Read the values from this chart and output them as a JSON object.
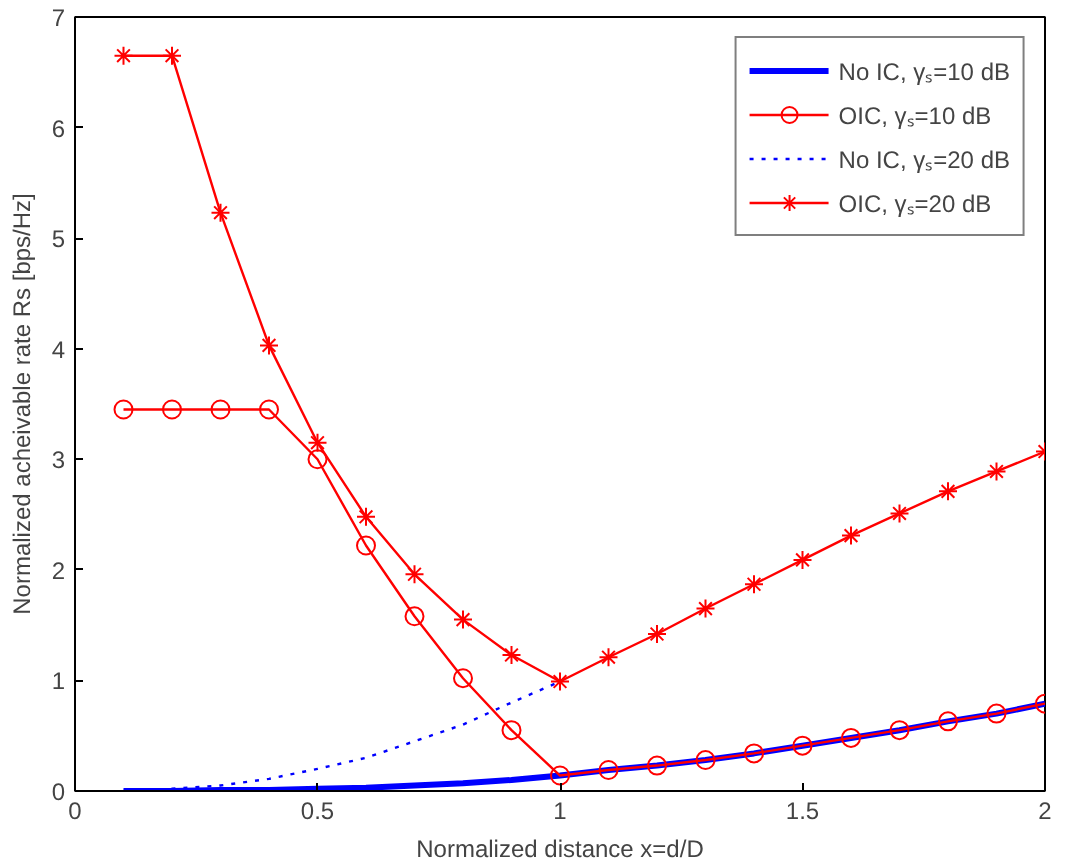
{
  "chart_data": {
    "type": "line",
    "xlabel": "Normalized distance x=d/D",
    "ylabel": "Normalized acheivable rate Rs [bps/Hz]",
    "xlim": [
      0,
      2
    ],
    "ylim": [
      0,
      7
    ],
    "xticks": [
      0,
      0.5,
      1,
      1.5,
      2
    ],
    "yticks": [
      0,
      1,
      2,
      3,
      4,
      5,
      6,
      7
    ],
    "grid": false,
    "legend": "top right",
    "x": [
      0.1,
      0.2,
      0.3,
      0.4,
      0.5,
      0.6,
      0.7,
      0.8,
      0.9,
      1.0,
      1.1,
      1.2,
      1.3,
      1.4,
      1.5,
      1.6,
      1.7,
      1.8,
      1.9,
      2.0
    ],
    "series": [
      {
        "name": "No IC, γₛ=10 dB",
        "color": "#0000ff",
        "marker": "none",
        "line_style": "solid",
        "values": [
          0.0,
          0.0,
          0.01,
          0.01,
          0.02,
          0.03,
          0.05,
          0.07,
          0.1,
          0.14,
          0.19,
          0.23,
          0.28,
          0.34,
          0.41,
          0.48,
          0.55,
          0.63,
          0.7,
          0.79
        ]
      },
      {
        "name": "OIC, γₛ=10 dB",
        "color": "#ff0000",
        "marker": "circle",
        "line_style": "solid",
        "values": [
          3.45,
          3.45,
          3.45,
          3.45,
          3.0,
          2.22,
          1.58,
          1.02,
          0.55,
          0.14,
          0.19,
          0.23,
          0.28,
          0.34,
          0.41,
          0.48,
          0.55,
          0.63,
          0.7,
          0.79
        ]
      },
      {
        "name": "No IC, γₛ=20 dB",
        "color": "#0000ff",
        "marker": "none",
        "line_style": "dotted",
        "values": [
          0.0,
          0.02,
          0.05,
          0.11,
          0.2,
          0.3,
          0.45,
          0.6,
          0.8,
          0.99,
          null,
          null,
          null,
          null,
          null,
          null,
          null,
          null,
          null,
          null
        ]
      },
      {
        "name": "OIC, γₛ=20 dB",
        "color": "#ff0000",
        "marker": "cross",
        "line_style": "solid",
        "values": [
          6.65,
          6.65,
          5.23,
          4.03,
          3.15,
          2.48,
          1.96,
          1.55,
          1.23,
          0.99,
          1.21,
          1.42,
          1.65,
          1.87,
          2.09,
          2.31,
          2.51,
          2.71,
          2.89,
          3.07
        ]
      }
    ]
  }
}
